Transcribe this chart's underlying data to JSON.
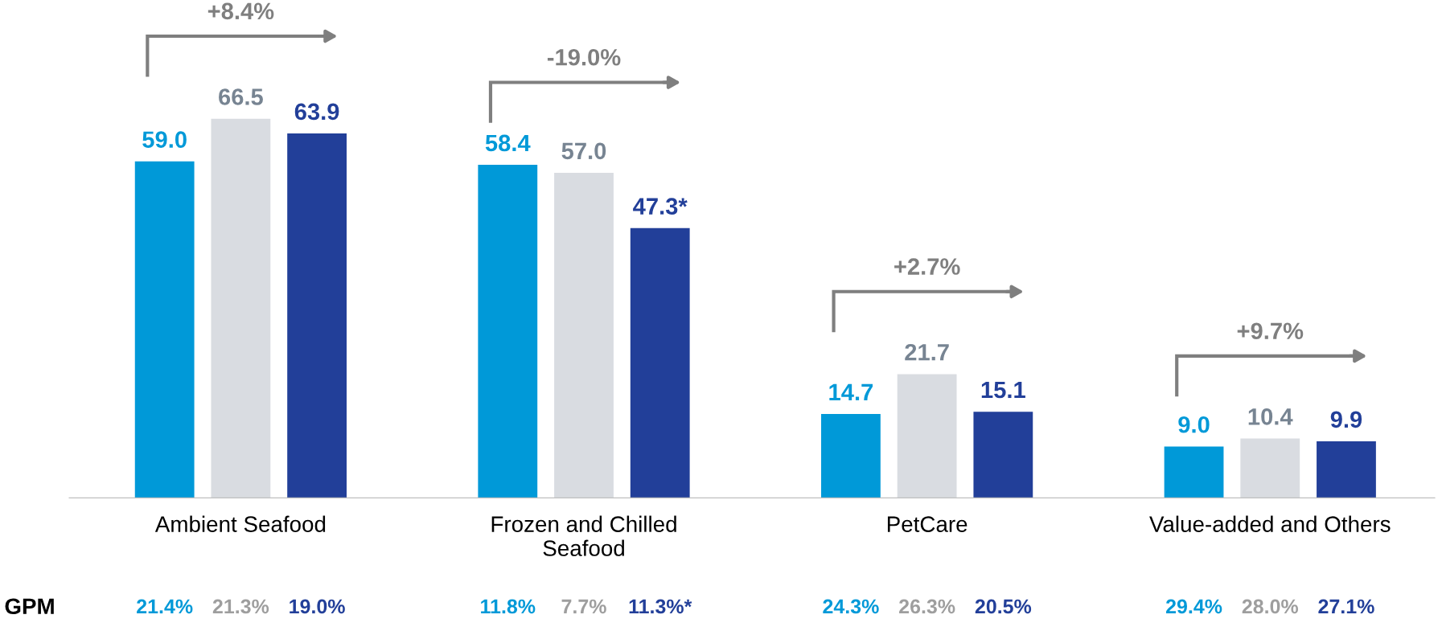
{
  "chart_data": {
    "type": "bar",
    "categories": [
      "Ambient Seafood",
      "Frozen and Chilled\nSeafood",
      "PetCare",
      "Value-added and Others"
    ],
    "series": [
      {
        "color": "#0099d8",
        "values": [
          59.0,
          58.4,
          14.7,
          9.0
        ],
        "value_labels": [
          "59.0",
          "58.4",
          "14.7",
          "9.0"
        ]
      },
      {
        "color": "#d9dce1",
        "values": [
          66.5,
          57.0,
          21.7,
          10.4
        ],
        "value_labels": [
          "66.5",
          "57.0",
          "21.7",
          "10.4"
        ]
      },
      {
        "color": "#223f99",
        "values": [
          63.9,
          47.3,
          15.1,
          9.9
        ],
        "value_labels": [
          "63.9",
          "47.3*",
          "15.1",
          "9.9"
        ]
      }
    ],
    "annotations": [
      "+8.4%",
      "-19.0%",
      "+2.7%",
      "+9.7%",
      "GPM",
      "21.4%",
      "21.3%",
      "19.0%",
      "11.8%",
      "7.7%",
      "11.3%*",
      "24.3%",
      "26.3%",
      "20.5%",
      "29.4%",
      "28.0%",
      "27.1%"
    ],
    "grid": false,
    "legend": false
  }
}
